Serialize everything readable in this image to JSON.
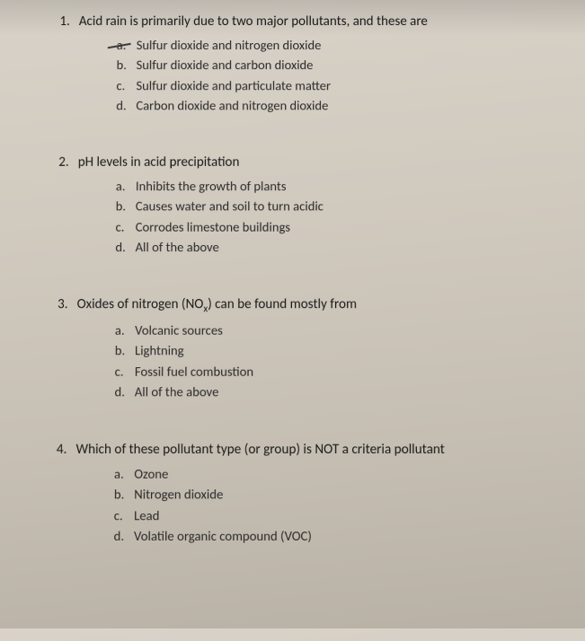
{
  "questions": [
    {
      "number": "1.",
      "stem": "Acid rain is primarily due to two major pollutants, and these are",
      "options": [
        {
          "letter": "a.",
          "text": "Sulfur dioxide and nitrogen dioxide",
          "struck": true
        },
        {
          "letter": "b.",
          "text": "Sulfur dioxide and carbon dioxide",
          "struck": false
        },
        {
          "letter": "c.",
          "text": "Sulfur dioxide and particulate matter",
          "struck": false
        },
        {
          "letter": "d.",
          "text": "Carbon dioxide and nitrogen dioxide",
          "struck": false
        }
      ]
    },
    {
      "number": "2.",
      "stem": "pH levels in acid precipitation",
      "options": [
        {
          "letter": "a.",
          "text": "Inhibits the growth of plants",
          "struck": false
        },
        {
          "letter": "b.",
          "text": "Causes water and soil to turn acidic",
          "struck": false
        },
        {
          "letter": "c.",
          "text": "Corrodes limestone buildings",
          "struck": false
        },
        {
          "letter": "d.",
          "text": "All of the above",
          "struck": false
        }
      ]
    },
    {
      "number": "3.",
      "stem_html": "Oxides of nitrogen (NO<span class=\"sub\">x</span>) can be found mostly from",
      "options": [
        {
          "letter": "a.",
          "text": "Volcanic sources",
          "struck": false
        },
        {
          "letter": "b.",
          "text": "Lightning",
          "struck": false
        },
        {
          "letter": "c.",
          "text": "Fossil fuel combustion",
          "struck": false
        },
        {
          "letter": "d.",
          "text": "All of the above",
          "struck": false
        }
      ]
    },
    {
      "number": "4.",
      "stem": "Which of these pollutant type (or group) is NOT a criteria pollutant",
      "options": [
        {
          "letter": "a.",
          "text": "Ozone",
          "struck": false
        },
        {
          "letter": "b.",
          "text": "Nitrogen dioxide",
          "struck": false
        },
        {
          "letter": "c.",
          "text": "Lead",
          "struck": false
        },
        {
          "letter": "d.",
          "text": "Volatile organic compound (VOC)",
          "struck": false
        }
      ]
    }
  ],
  "style": {
    "text_color": "#2a2a2a",
    "stem_fontsize": 15,
    "option_fontsize": 14.5,
    "background_gradient": [
      "#d8d2c8",
      "#b8b1a5"
    ]
  }
}
